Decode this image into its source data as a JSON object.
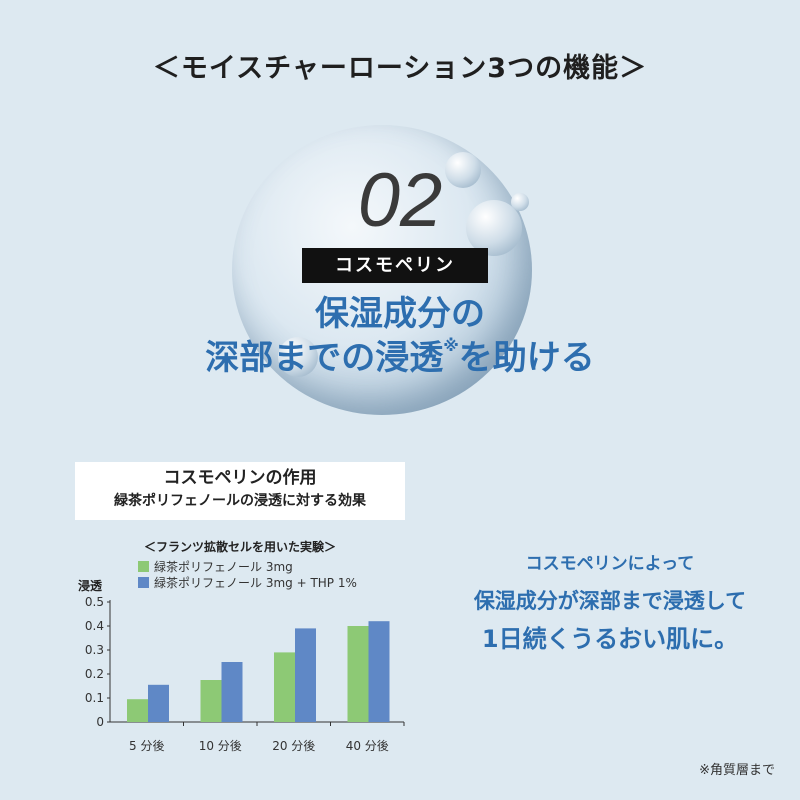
{
  "title": "＜モイスチャーローション3つの機能＞",
  "feature_number": "02",
  "ingredient_tag": "コスモペリン",
  "headline": {
    "line1": "保湿成分の",
    "line2": "深部までの浸透",
    "line2_mark": "※",
    "line2_end": "を助ける"
  },
  "info_box": {
    "title": "コスモペリンの作用",
    "subtitle": "緑茶ポリフェノールの浸透に対する効果"
  },
  "colors": {
    "background": "#dde9f1",
    "accent": "#2d6eaf",
    "green": "#8dc975",
    "blue": "#5f88c6"
  },
  "chart_data": {
    "type": "bar",
    "title": "＜フランツ拡散セルを用いた実験＞",
    "ylabel": "浸透",
    "xlabel": "",
    "categories": [
      "5 分後",
      "10 分後",
      "20 分後",
      "40 分後"
    ],
    "series": [
      {
        "name": "緑茶ポリフェノール 3mg",
        "values": [
          0.095,
          0.175,
          0.29,
          0.4
        ],
        "color": "#8dc975"
      },
      {
        "name": "緑茶ポリフェノール 3mg + THP 1%",
        "values": [
          0.155,
          0.25,
          0.39,
          0.42
        ],
        "color": "#5f88c6"
      }
    ],
    "ylim": [
      0,
      0.5
    ],
    "yticks": [
      "0",
      "0.1",
      "0.2",
      "0.3",
      "0.4",
      "0.5"
    ],
    "grid": false,
    "legend": "top"
  },
  "right_text": {
    "line1": "コスモペリンによって",
    "line2": "保湿成分が深部まで浸透して",
    "line3": "1日続くうるおい肌に。"
  },
  "footnote": "※角質層まで"
}
